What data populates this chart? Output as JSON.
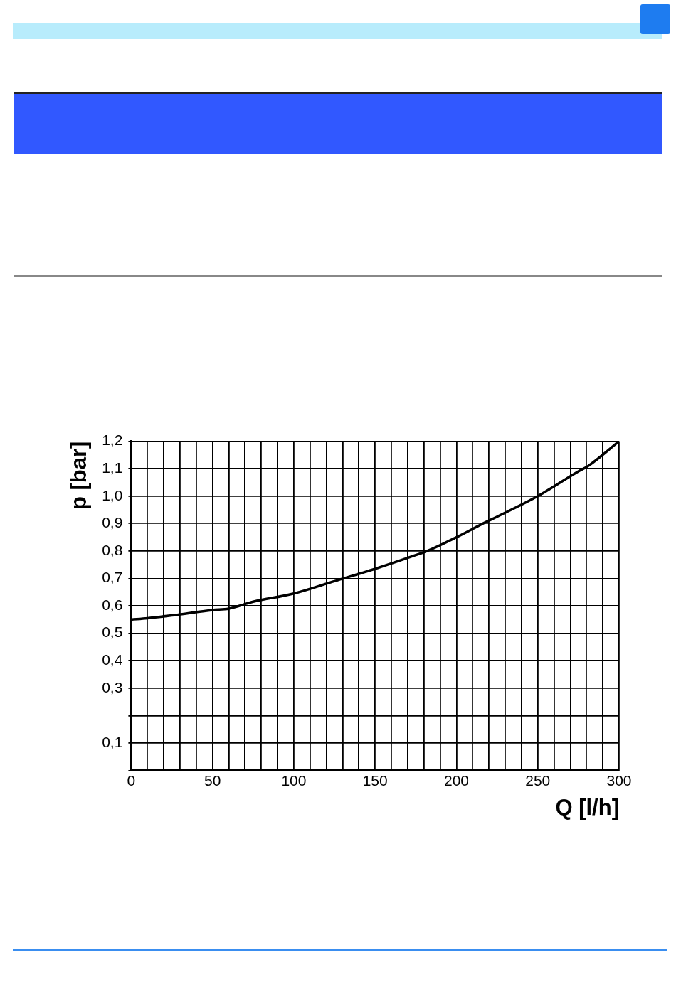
{
  "chart_data": {
    "type": "line",
    "xlabel": "Q [l/h]",
    "ylabel": "p [bar]",
    "x": [
      0,
      10,
      25,
      50,
      60,
      75,
      100,
      125,
      150,
      175,
      182,
      200,
      218,
      225,
      250,
      275,
      281,
      300
    ],
    "series": [
      {
        "color": "#000000",
        "values": [
          0.55,
          0.555,
          0.565,
          0.585,
          0.59,
          0.615,
          0.645,
          0.69,
          0.735,
          0.785,
          0.8,
          0.85,
          0.905,
          0.925,
          1.0,
          1.09,
          1.11,
          1.2
        ]
      }
    ],
    "xlim": [
      0,
      300
    ],
    "xticks": [
      {
        "value": 0,
        "label": "0"
      },
      {
        "value": 10,
        "label": null
      },
      {
        "value": 20,
        "label": null
      },
      {
        "value": 30,
        "label": null
      },
      {
        "value": 40,
        "label": null
      },
      50,
      {
        "value": 60,
        "label": null
      },
      {
        "value": 70,
        "label": null
      },
      {
        "value": 80,
        "label": null
      },
      {
        "value": 90,
        "label": null
      },
      100,
      {
        "value": 110,
        "label": null
      },
      {
        "value": 120,
        "label": null
      },
      {
        "value": 130,
        "label": null
      },
      {
        "value": 140,
        "label": null
      },
      150,
      {
        "value": 160,
        "label": null
      },
      {
        "value": 170,
        "label": null
      },
      {
        "value": 180,
        "label": null
      },
      {
        "value": 190,
        "label": null
      },
      200,
      {
        "value": 210,
        "label": null
      },
      {
        "value": 220,
        "label": null
      },
      {
        "value": 230,
        "label": null
      },
      {
        "value": 240,
        "label": null
      },
      250,
      {
        "value": 260,
        "label": null
      },
      {
        "value": 270,
        "label": null
      },
      {
        "value": 280,
        "label": null
      },
      {
        "value": 290,
        "label": null
      },
      300
    ],
    "ylim": [
      0,
      1.2
    ],
    "yticks": [
      {
        "value": 0,
        "label": null
      },
      {
        "value": 0.1,
        "label": "0,1"
      },
      {
        "value": 0.2,
        "label": null
      },
      {
        "value": 0.3,
        "label": "0,3"
      },
      {
        "value": 0.4,
        "label": "0,4"
      },
      {
        "value": 0.5,
        "label": "0,5"
      },
      {
        "value": 0.6,
        "label": "0,6"
      },
      {
        "value": 0.7,
        "label": "0,7"
      },
      {
        "value": 0.8,
        "label": "0,8"
      },
      {
        "value": 0.9,
        "label": "0,9"
      },
      {
        "value": 1.0,
        "label": "1,0"
      },
      {
        "value": 1.1,
        "label": "1,1"
      },
      {
        "value": 1.2,
        "label": "1,2"
      }
    ],
    "grid": true,
    "legend": false,
    "marker": "none",
    "line_style": "solid"
  }
}
